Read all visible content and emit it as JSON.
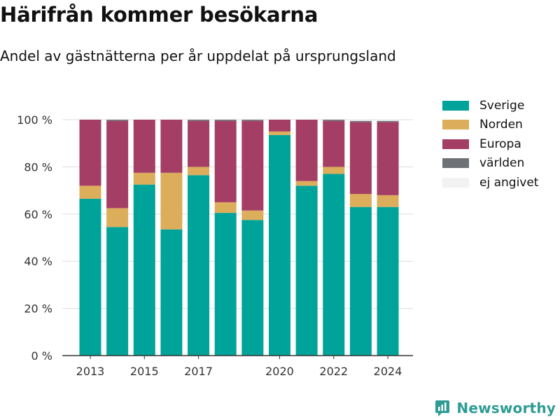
{
  "title": "Härifrån kommer besökarna",
  "subtitle": "Andel av gästnätterna per år uppdelat på ursprungsland",
  "brand": {
    "name": "Newsworthy",
    "icon": "newsworthy-logo-icon"
  },
  "chart_data": {
    "type": "bar",
    "stacked": true,
    "title": "Härifrån kommer besökarna",
    "subtitle": "Andel av gästnätterna per år uppdelat på ursprungsland",
    "xlabel": "",
    "ylabel": "",
    "ylim": [
      0,
      100
    ],
    "yticks": [
      0,
      20,
      40,
      60,
      80,
      100
    ],
    "ytick_labels": [
      "0 %",
      "20 %",
      "40 %",
      "60 %",
      "80 %",
      "100 %"
    ],
    "xtick_labels": [
      "2013",
      "2015",
      "2017",
      "2020",
      "2022",
      "2024"
    ],
    "grid": true,
    "legend_position": "right",
    "categories": [
      "2013",
      "2014",
      "2015",
      "2016",
      "2017",
      "2018",
      "2019",
      "2020",
      "2021",
      "2022",
      "2023",
      "2024"
    ],
    "series": [
      {
        "name": "Sverige",
        "color": "#00a39a",
        "values": [
          66.5,
          54.5,
          72.5,
          53.5,
          76.5,
          60.5,
          57.5,
          93.5,
          72,
          77,
          63,
          63
        ]
      },
      {
        "name": "Norden",
        "color": "#dcad5b",
        "values": [
          5.5,
          8,
          5,
          24,
          3.5,
          4.5,
          4,
          1.5,
          2,
          3,
          5.5,
          5
        ]
      },
      {
        "name": "Europa",
        "color": "#a43e65",
        "values": [
          28,
          37,
          22.5,
          22.5,
          19.5,
          34.5,
          38,
          5,
          26,
          19.5,
          30.5,
          31
        ]
      },
      {
        "name": "världen",
        "color": "#6e7176",
        "values": [
          0,
          0.5,
          0,
          0,
          0.5,
          0.5,
          0.5,
          0,
          0,
          0.5,
          0.5,
          0.5
        ]
      },
      {
        "name": "ej angivet",
        "color": "#f2f2f2",
        "values": [
          0,
          0,
          0,
          0,
          0,
          0,
          0,
          0,
          0,
          0,
          0.5,
          0.5
        ]
      }
    ]
  }
}
